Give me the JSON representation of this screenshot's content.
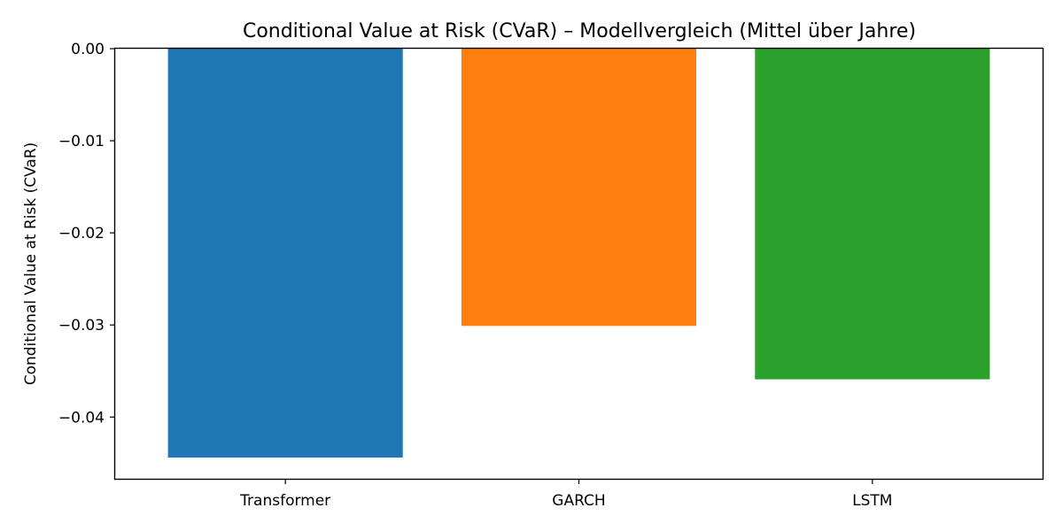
{
  "chart_data": {
    "type": "bar",
    "title": "Conditional Value at Risk (CVaR) – Modellvergleich (Mittel über Jahre)",
    "xlabel": "",
    "ylabel": "Conditional Value at Risk (CVaR)",
    "categories": [
      "Transformer",
      "GARCH",
      "LSTM"
    ],
    "values": [
      -0.0444,
      -0.0301,
      -0.0359
    ],
    "colors": [
      "#1f77b4",
      "#ff7f0e",
      "#2ca02c"
    ],
    "ylim": [
      -0.0467,
      0.0
    ],
    "yticks": [
      0.0,
      -0.01,
      -0.02,
      -0.03,
      -0.04
    ],
    "ytick_labels": [
      "0.00",
      "−0.01",
      "−0.02",
      "−0.03",
      "−0.04"
    ],
    "grid": false,
    "legend": "none"
  }
}
